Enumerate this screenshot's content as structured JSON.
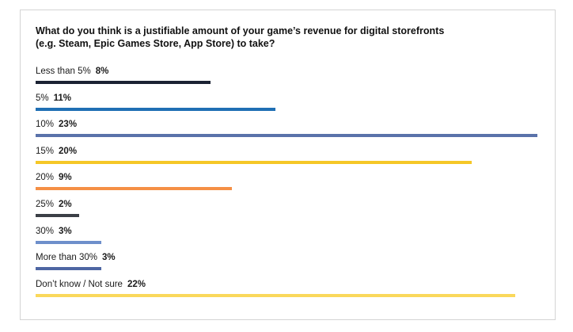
{
  "card": {
    "title_line1": "What do you think is a justifiable amount of your game’s revenue for digital storefronts",
    "title_line2": "(e.g. Steam, Epic Games Store, App Store) to take?"
  },
  "chart_data": {
    "type": "bar",
    "orientation": "horizontal",
    "title": "What do you think is a justifiable amount of your game’s revenue for digital storefronts (e.g. Steam, Epic Games Store, App Store) to take?",
    "categories": [
      "Less than 5%",
      "5%",
      "10%",
      "15%",
      "20%",
      "25%",
      "30%",
      "More than 30%",
      "Don’t know / Not sure"
    ],
    "values": [
      8,
      11,
      23,
      20,
      9,
      2,
      3,
      3,
      22
    ],
    "value_labels": [
      "8%",
      "11%",
      "23%",
      "20%",
      "9%",
      "2%",
      "3%",
      "3%",
      "22%"
    ],
    "colors": [
      "#1b2233",
      "#1f6fb4",
      "#5a72aa",
      "#f5c727",
      "#f58f45",
      "#3b3f46",
      "#6e8fcb",
      "#4e66a3",
      "#fad85b"
    ],
    "unit": "%",
    "xlim": [
      0,
      23
    ],
    "grid": false,
    "legend": "none"
  }
}
